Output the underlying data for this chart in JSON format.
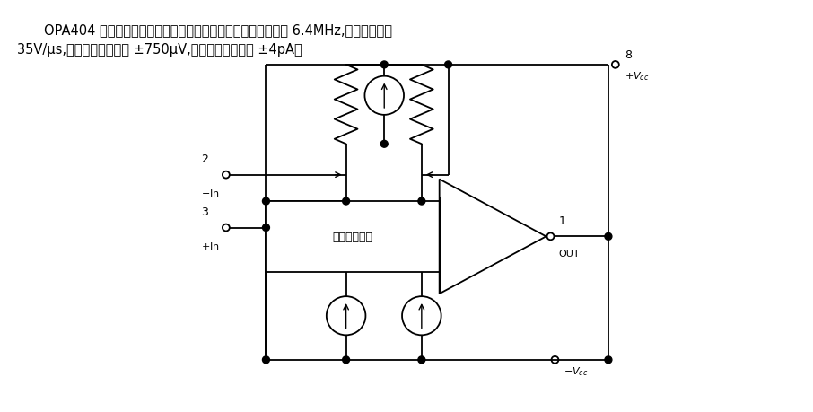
{
  "title_line1": "OPA404 是高性能介质隔离场效应输入单片运算放大器。带宽为 6.4MHz,高转换速率为",
  "title_line2": "35V/μs,低失调电压最大为 ±750μV,低偏置电流最大为 ±4pA。",
  "box_label": "供发共基放大",
  "bg_color": "#ffffff",
  "line_color": "#000000",
  "text_color": "#000000",
  "font_size_title": 10.5,
  "fig_width": 9.06,
  "fig_height": 4.6
}
